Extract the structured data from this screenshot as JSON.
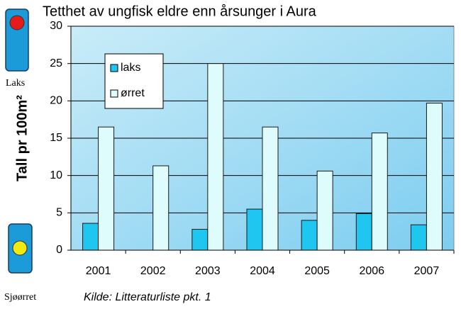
{
  "chart_data": {
    "type": "bar",
    "title": "Tetthet av ungfisk eldre enn årsunger i Aura",
    "y_label": "Tall pr 100m²",
    "categories": [
      "2001",
      "2002",
      "2003",
      "2004",
      "2005",
      "2006",
      "2007"
    ],
    "series": [
      {
        "name": "laks",
        "color": "#1ec6f0",
        "values": [
          3.6,
          0,
          2.8,
          5.5,
          4.0,
          4.9,
          3.4
        ]
      },
      {
        "name": "ørret",
        "color": "#dffcfc",
        "values": [
          16.5,
          11.3,
          25.0,
          16.5,
          10.6,
          15.7,
          19.7
        ]
      }
    ],
    "ylim": [
      0,
      30
    ],
    "yticks": [
      0,
      5,
      10,
      15,
      20,
      25,
      30
    ],
    "grid": true,
    "legend": "upper left"
  },
  "sidebar": {
    "top_label": "Laks",
    "bottom_label": "Sjøørret"
  },
  "source": "Kilde: Litteraturliste pkt. 1"
}
